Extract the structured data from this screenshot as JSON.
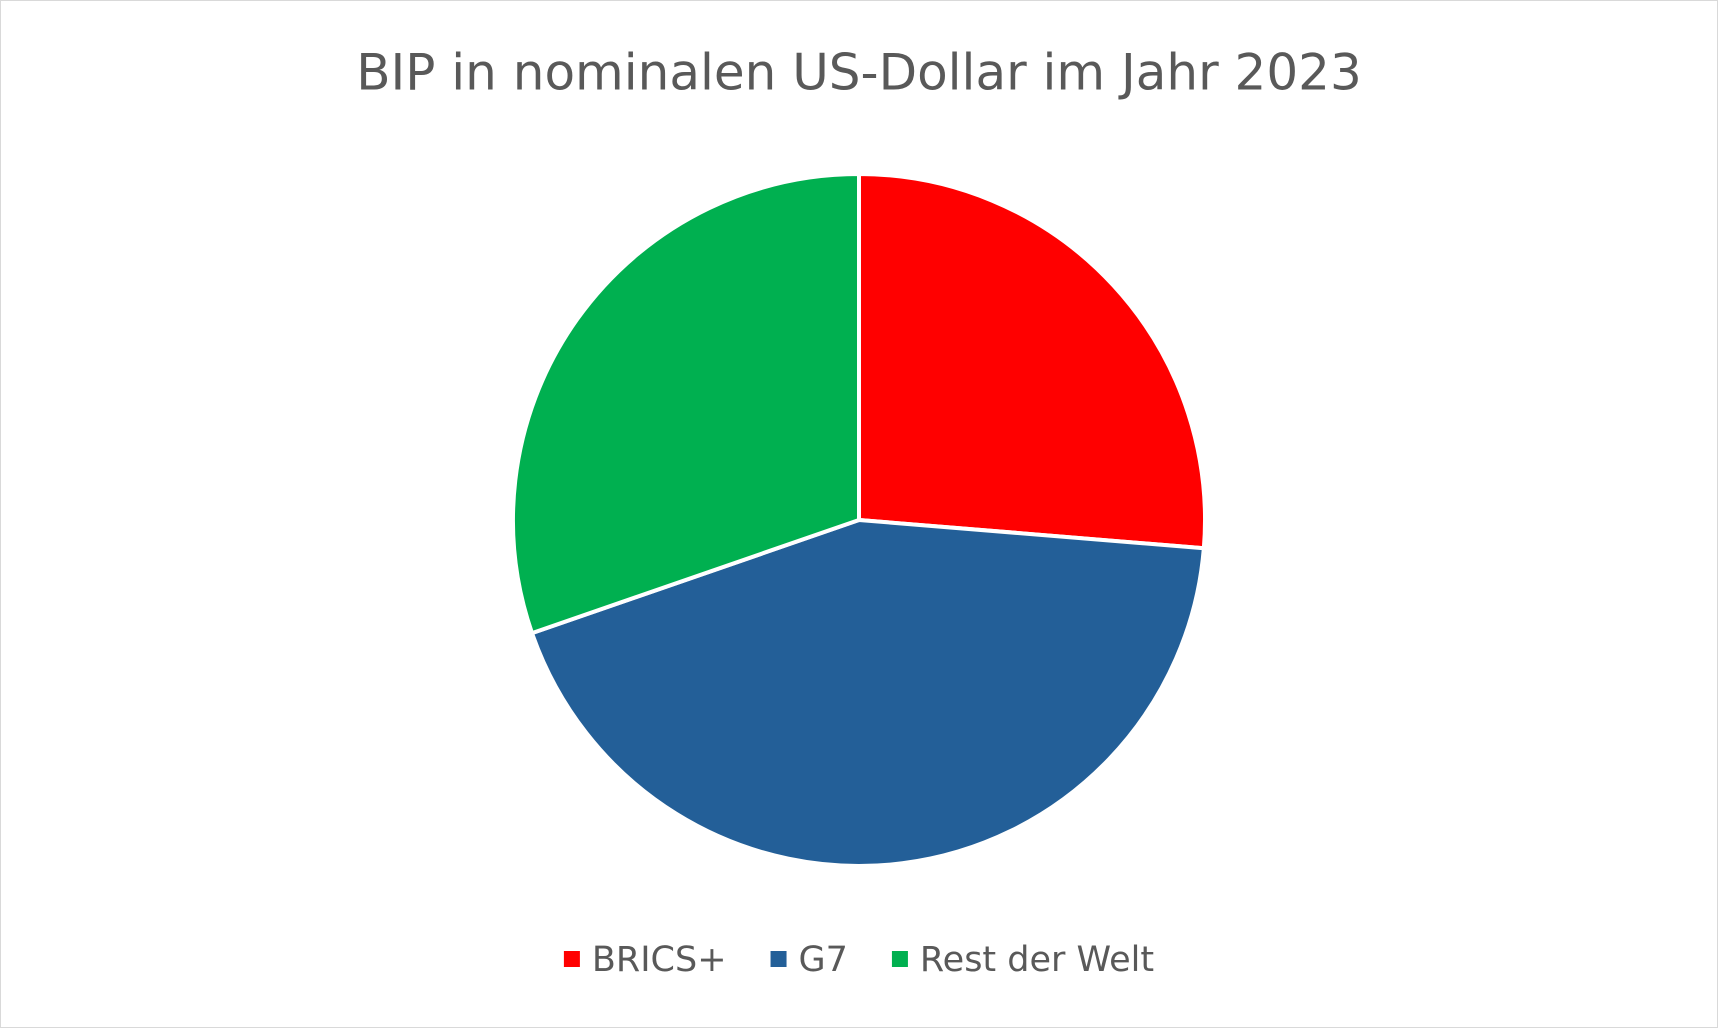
{
  "chart_data": {
    "type": "pie",
    "title": "BIP in nominalen US-Dollar im Jahr 2023",
    "categories": [
      "BRICS+",
      "G7",
      "Rest der Welt"
    ],
    "values": [
      26.3,
      43.4,
      30.3
    ],
    "colors": [
      "#ff0000",
      "#235f98",
      "#00b050"
    ],
    "legend": "bottom"
  }
}
